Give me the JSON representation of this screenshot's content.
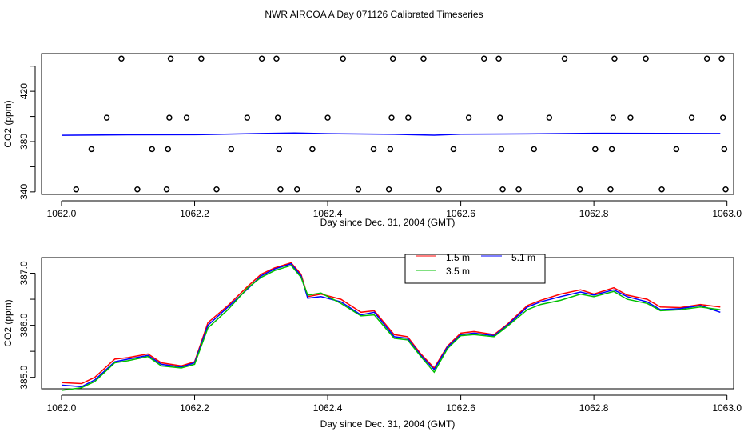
{
  "title": "NWR AIRCOA A  Day 071126  Calibrated Timeseries",
  "chart_data": [
    {
      "type": "scatter",
      "xlabel": "Day since Dec. 31, 2004 (GMT)",
      "ylabel": "CO2 (ppm)",
      "xlim": [
        1061.97,
        1063.01
      ],
      "ylim": [
        338,
        450
      ],
      "xticks": [
        1062.0,
        1062.2,
        1062.4,
        1062.6,
        1062.8,
        1063.0
      ],
      "xtick_labels": [
        "1062.0",
        "1062.2",
        "1062.4",
        "1062.6",
        "1062.8",
        "1063.0"
      ],
      "yticks": [
        340,
        360,
        380,
        400,
        420,
        440
      ],
      "ytick_labels": [
        "340",
        "",
        "380",
        "",
        "420",
        ""
      ],
      "markers": [
        {
          "x": 1062.022,
          "y": 342
        },
        {
          "x": 1062.045,
          "y": 374
        },
        {
          "x": 1062.068,
          "y": 399
        },
        {
          "x": 1062.09,
          "y": 446
        },
        {
          "x": 1062.114,
          "y": 342
        },
        {
          "x": 1062.136,
          "y": 374
        },
        {
          "x": 1062.158,
          "y": 342
        },
        {
          "x": 1062.16,
          "y": 374
        },
        {
          "x": 1062.162,
          "y": 399
        },
        {
          "x": 1062.164,
          "y": 446
        },
        {
          "x": 1062.188,
          "y": 399
        },
        {
          "x": 1062.21,
          "y": 446
        },
        {
          "x": 1062.233,
          "y": 342
        },
        {
          "x": 1062.255,
          "y": 374
        },
        {
          "x": 1062.279,
          "y": 399
        },
        {
          "x": 1062.301,
          "y": 446
        },
        {
          "x": 1062.323,
          "y": 446
        },
        {
          "x": 1062.325,
          "y": 399
        },
        {
          "x": 1062.327,
          "y": 374
        },
        {
          "x": 1062.329,
          "y": 342
        },
        {
          "x": 1062.354,
          "y": 342
        },
        {
          "x": 1062.377,
          "y": 374
        },
        {
          "x": 1062.4,
          "y": 399
        },
        {
          "x": 1062.423,
          "y": 446
        },
        {
          "x": 1062.446,
          "y": 342
        },
        {
          "x": 1062.469,
          "y": 374
        },
        {
          "x": 1062.492,
          "y": 342
        },
        {
          "x": 1062.494,
          "y": 374
        },
        {
          "x": 1062.496,
          "y": 399
        },
        {
          "x": 1062.498,
          "y": 446
        },
        {
          "x": 1062.521,
          "y": 399
        },
        {
          "x": 1062.544,
          "y": 446
        },
        {
          "x": 1062.567,
          "y": 342
        },
        {
          "x": 1062.589,
          "y": 374
        },
        {
          "x": 1062.612,
          "y": 399
        },
        {
          "x": 1062.635,
          "y": 446
        },
        {
          "x": 1062.657,
          "y": 446
        },
        {
          "x": 1062.659,
          "y": 399
        },
        {
          "x": 1062.661,
          "y": 374
        },
        {
          "x": 1062.663,
          "y": 342
        },
        {
          "x": 1062.687,
          "y": 342
        },
        {
          "x": 1062.71,
          "y": 374
        },
        {
          "x": 1062.733,
          "y": 399
        },
        {
          "x": 1062.756,
          "y": 446
        },
        {
          "x": 1062.779,
          "y": 342
        },
        {
          "x": 1062.802,
          "y": 374
        },
        {
          "x": 1062.825,
          "y": 342
        },
        {
          "x": 1062.827,
          "y": 374
        },
        {
          "x": 1062.829,
          "y": 399
        },
        {
          "x": 1062.831,
          "y": 446
        },
        {
          "x": 1062.855,
          "y": 399
        },
        {
          "x": 1062.878,
          "y": 446
        },
        {
          "x": 1062.902,
          "y": 342
        },
        {
          "x": 1062.924,
          "y": 374
        },
        {
          "x": 1062.947,
          "y": 399
        },
        {
          "x": 1062.97,
          "y": 446
        },
        {
          "x": 1062.992,
          "y": 446
        },
        {
          "x": 1062.994,
          "y": 399
        },
        {
          "x": 1062.996,
          "y": 374
        },
        {
          "x": 1062.998,
          "y": 342
        }
      ],
      "line": {
        "color": "#0000ff",
        "x": [
          1062.0,
          1062.1,
          1062.2,
          1062.3,
          1062.35,
          1062.4,
          1062.5,
          1062.56,
          1062.6,
          1062.7,
          1062.8,
          1062.9,
          1062.99
        ],
        "y": [
          385.0,
          385.4,
          385.5,
          386.4,
          386.8,
          386.3,
          385.8,
          385.1,
          385.9,
          386.1,
          386.6,
          386.5,
          386.4
        ]
      }
    },
    {
      "type": "line",
      "xlabel": "Day since Dec. 31, 2004 (GMT)",
      "ylabel": "CO2 (ppm)",
      "xlim": [
        1061.97,
        1063.01
      ],
      "ylim": [
        384.78,
        387.3
      ],
      "xticks": [
        1062.0,
        1062.2,
        1062.4,
        1062.6,
        1062.8,
        1063.0
      ],
      "xtick_labels": [
        "1062.0",
        "1062.2",
        "1062.4",
        "1062.6",
        "1062.8",
        "1063.0"
      ],
      "yticks": [
        385.0,
        385.5,
        386.0,
        386.5,
        387.0
      ],
      "ytick_labels": [
        "385.0",
        "",
        "386.0",
        "",
        "387.0"
      ],
      "legend": {
        "position": "top-center",
        "entries": [
          "1.5 m",
          "5.1 m",
          "3.5 m"
        ]
      },
      "series": [
        {
          "name": "1.5 m",
          "color": "#ff0000",
          "x": [
            1062.0,
            1062.03,
            1062.05,
            1062.08,
            1062.1,
            1062.13,
            1062.15,
            1062.18,
            1062.2,
            1062.22,
            1062.25,
            1062.28,
            1062.3,
            1062.32,
            1062.345,
            1062.36,
            1062.37,
            1062.39,
            1062.42,
            1062.45,
            1062.47,
            1062.5,
            1062.52,
            1062.54,
            1062.56,
            1062.58,
            1062.6,
            1062.62,
            1062.65,
            1062.67,
            1062.7,
            1062.72,
            1062.75,
            1062.78,
            1062.8,
            1062.83,
            1062.85,
            1062.88,
            1062.9,
            1062.93,
            1062.96,
            1062.99
          ],
          "y": [
            384.9,
            384.88,
            385.0,
            385.35,
            385.38,
            385.45,
            385.28,
            385.22,
            385.3,
            386.05,
            386.38,
            386.75,
            386.98,
            387.1,
            387.2,
            386.98,
            386.55,
            386.6,
            386.5,
            386.25,
            386.28,
            385.82,
            385.78,
            385.45,
            385.18,
            385.6,
            385.85,
            385.88,
            385.82,
            386.02,
            386.38,
            386.48,
            386.6,
            386.68,
            386.6,
            386.72,
            386.58,
            386.5,
            386.35,
            386.34,
            386.4,
            386.35
          ]
        },
        {
          "name": "5.1 m",
          "color": "#0000ff",
          "x": [
            1062.0,
            1062.03,
            1062.05,
            1062.08,
            1062.1,
            1062.13,
            1062.15,
            1062.18,
            1062.2,
            1062.22,
            1062.25,
            1062.28,
            1062.3,
            1062.32,
            1062.345,
            1062.36,
            1062.37,
            1062.39,
            1062.42,
            1062.45,
            1062.47,
            1062.5,
            1062.52,
            1062.54,
            1062.56,
            1062.58,
            1062.6,
            1062.62,
            1062.65,
            1062.67,
            1062.7,
            1062.72,
            1062.75,
            1062.78,
            1062.8,
            1062.83,
            1062.85,
            1062.88,
            1062.9,
            1062.93,
            1062.96,
            1062.99
          ],
          "y": [
            384.85,
            384.82,
            384.95,
            385.3,
            385.35,
            385.42,
            385.25,
            385.2,
            385.28,
            386.0,
            386.35,
            386.7,
            386.95,
            387.08,
            387.18,
            386.95,
            386.52,
            386.55,
            386.45,
            386.2,
            386.25,
            385.78,
            385.75,
            385.42,
            385.15,
            385.58,
            385.82,
            385.85,
            385.8,
            386.0,
            386.35,
            386.45,
            386.55,
            386.64,
            386.58,
            386.68,
            386.55,
            386.45,
            386.3,
            386.32,
            386.38,
            386.25
          ]
        },
        {
          "name": "3.5 m",
          "color": "#00c000",
          "x": [
            1062.0,
            1062.03,
            1062.05,
            1062.08,
            1062.1,
            1062.13,
            1062.15,
            1062.18,
            1062.2,
            1062.22,
            1062.25,
            1062.28,
            1062.3,
            1062.32,
            1062.345,
            1062.36,
            1062.37,
            1062.39,
            1062.42,
            1062.45,
            1062.47,
            1062.5,
            1062.52,
            1062.54,
            1062.56,
            1062.58,
            1062.6,
            1062.62,
            1062.65,
            1062.67,
            1062.7,
            1062.72,
            1062.75,
            1062.78,
            1062.8,
            1062.83,
            1062.85,
            1062.88,
            1062.9,
            1062.93,
            1062.96,
            1062.99
          ],
          "y": [
            384.75,
            384.8,
            384.92,
            385.28,
            385.32,
            385.4,
            385.22,
            385.18,
            385.25,
            385.95,
            386.3,
            386.72,
            386.92,
            387.05,
            387.15,
            386.92,
            386.58,
            386.62,
            386.42,
            386.18,
            386.2,
            385.75,
            385.72,
            385.4,
            385.1,
            385.55,
            385.8,
            385.82,
            385.78,
            385.98,
            386.3,
            386.4,
            386.48,
            386.6,
            386.55,
            386.65,
            386.5,
            386.42,
            386.28,
            386.3,
            386.35,
            386.3
          ]
        }
      ]
    }
  ]
}
